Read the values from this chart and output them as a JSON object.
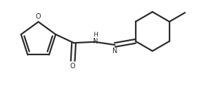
{
  "bg_color": "#ffffff",
  "line_color": "#2a2a2a",
  "atom_color_O": "#2a2a2a",
  "atom_color_N": "#2a2a2a",
  "line_width": 1.6,
  "fig_width": 3.12,
  "fig_height": 1.32,
  "dpi": 100,
  "xlim": [
    0.0,
    1.0
  ],
  "ylim": [
    0.0,
    1.0
  ]
}
